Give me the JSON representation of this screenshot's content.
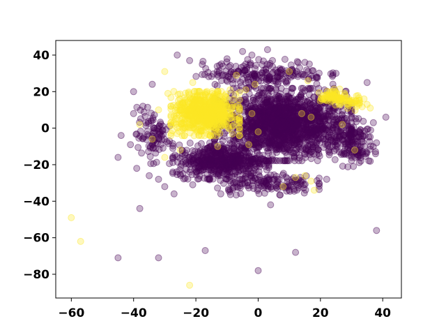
{
  "chart_data": {
    "type": "scatter",
    "title": "",
    "xlabel": "",
    "ylabel": "",
    "xlim": [
      -65,
      46
    ],
    "ylim": [
      -93,
      48
    ],
    "x_ticks": [
      -60,
      -40,
      -20,
      0,
      20,
      40
    ],
    "y_ticks": [
      40,
      20,
      0,
      -20,
      -40,
      -60,
      -80
    ],
    "x_tick_labels": [
      "−60",
      "−40",
      "−20",
      "0",
      "20",
      "40"
    ],
    "y_tick_labels": [
      "40",
      "20",
      "0",
      "−20",
      "−40",
      "−60",
      "−80"
    ],
    "grid": false,
    "legend": false,
    "marker_opacity": 0.3,
    "colors": {
      "purple": "#440154",
      "yellow": "#fde725",
      "frame": "#000000"
    },
    "series": [
      {
        "color": "#440154",
        "clusters": [
          {
            "cx": 8,
            "cy": 2,
            "rx": 20,
            "ry": 18,
            "n": 1600
          },
          {
            "cx": -12,
            "cy": -18,
            "rx": 14,
            "ry": 9,
            "n": 500
          },
          {
            "cx": -34,
            "cy": -4,
            "rx": 5,
            "ry": 14,
            "n": 90
          },
          {
            "cx": 30,
            "cy": -8,
            "rx": 7,
            "ry": 12,
            "n": 150
          },
          {
            "cx": 2,
            "cy": 30,
            "rx": 20,
            "ry": 7,
            "n": 200
          },
          {
            "cx": 2,
            "cy": -30,
            "rx": 16,
            "ry": 6,
            "n": 150
          }
        ],
        "points": [
          [
            -45,
            -71
          ],
          [
            -38,
            -44
          ],
          [
            -32,
            -71
          ],
          [
            -17,
            -67
          ],
          [
            0,
            -78
          ],
          [
            12,
            -68
          ],
          [
            38,
            -56
          ],
          [
            41,
            6
          ],
          [
            -45,
            -16
          ],
          [
            -32,
            -28
          ],
          [
            -27,
            -36
          ],
          [
            -39,
            -22
          ],
          [
            -40,
            20
          ],
          [
            -40,
            8
          ],
          [
            -26,
            40
          ],
          [
            -5,
            42
          ],
          [
            3,
            43
          ],
          [
            -44,
            -4
          ],
          [
            -37,
            12
          ],
          [
            -34,
            24
          ],
          [
            -22,
            37
          ],
          [
            -10,
            38
          ],
          [
            -2,
            40
          ],
          [
            15,
            36
          ],
          [
            25,
            30
          ],
          [
            35,
            25
          ],
          [
            38,
            -8
          ],
          [
            37,
            3
          ],
          [
            -12,
            -36
          ],
          [
            4,
            -42
          ],
          [
            -21,
            -31
          ],
          [
            22,
            -28
          ],
          [
            -41,
            -9
          ],
          [
            33,
            -18
          ],
          [
            -35,
            -26
          ],
          [
            -30,
            -32
          ]
        ]
      },
      {
        "color": "#fde725",
        "clusters": [
          {
            "cx": -17,
            "cy": 8,
            "rx": 10,
            "ry": 11,
            "n": 700
          },
          {
            "cx": 24,
            "cy": 17,
            "rx": 4,
            "ry": 4,
            "n": 70
          },
          {
            "cx": 29,
            "cy": 14,
            "rx": 4,
            "ry": 4,
            "n": 40
          }
        ],
        "points": [
          [
            -60,
            -49
          ],
          [
            -57,
            -62
          ],
          [
            -22,
            -86
          ],
          [
            -30,
            31
          ],
          [
            -38,
            2
          ],
          [
            -34,
            -6
          ],
          [
            -30,
            -16
          ],
          [
            -25,
            -12
          ],
          [
            -21,
            25
          ],
          [
            -7,
            29
          ],
          [
            -4,
            21
          ],
          [
            -2,
            8
          ],
          [
            -3,
            -9
          ],
          [
            -6,
            -4
          ],
          [
            -1,
            24
          ],
          [
            12,
            -27
          ],
          [
            17,
            -29
          ],
          [
            8,
            -32
          ],
          [
            18,
            -34
          ],
          [
            15,
            -26
          ],
          [
            14,
            8
          ],
          [
            17,
            6
          ],
          [
            0,
            -2
          ],
          [
            10,
            31
          ],
          [
            31,
            -12
          ],
          [
            27,
            2
          ],
          [
            36,
            11
          ],
          [
            35,
            13
          ],
          [
            -26,
            -3
          ],
          [
            -24,
            14
          ],
          [
            -9,
            21
          ],
          [
            -13,
            -10
          ],
          [
            -29,
            19
          ],
          [
            -32,
            10
          ],
          [
            34,
            16
          ],
          [
            16,
            26
          ]
        ]
      }
    ]
  }
}
